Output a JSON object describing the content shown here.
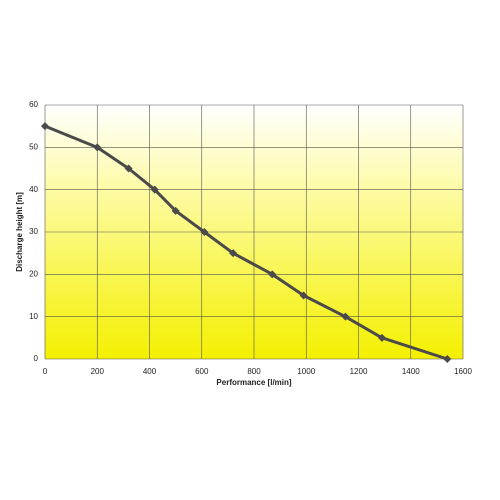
{
  "chart_data": {
    "type": "line",
    "x_label": "Performance [l/min]",
    "y_label": "Discharge  height [m]",
    "series": [
      {
        "color": "#4a4a4a",
        "x": [
          0,
          200,
          320,
          420,
          500,
          610,
          720,
          870,
          990,
          1150,
          1290,
          1540
        ],
        "values": [
          55,
          50,
          45,
          40,
          35,
          30,
          25,
          20,
          15,
          10,
          5,
          0
        ]
      }
    ],
    "xlim": [
      0,
      1600
    ],
    "xticks": [
      0,
      200,
      400,
      600,
      800,
      1000,
      1200,
      1400,
      1600
    ],
    "ylim": [
      0,
      60
    ],
    "yticks": [
      0,
      10,
      20,
      30,
      40,
      50,
      60
    ],
    "grid": true
  }
}
